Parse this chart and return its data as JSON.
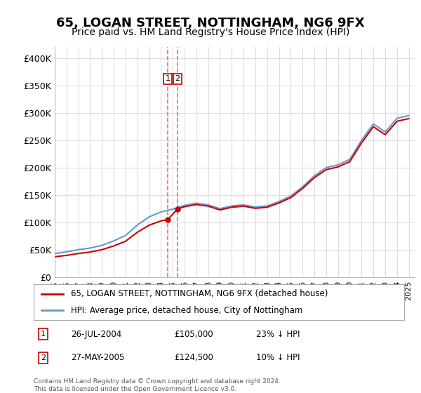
{
  "title": "65, LOGAN STREET, NOTTINGHAM, NG6 9FX",
  "subtitle": "Price paid vs. HM Land Registry's House Price Index (HPI)",
  "ylim": [
    0,
    420000
  ],
  "yticks": [
    0,
    50000,
    100000,
    150000,
    200000,
    250000,
    300000,
    350000,
    400000
  ],
  "ytick_labels": [
    "£0",
    "£50K",
    "£100K",
    "£150K",
    "£200K",
    "£250K",
    "£300K",
    "£350K",
    "£400K"
  ],
  "legend_line1": "65, LOGAN STREET, NOTTINGHAM, NG6 9FX (detached house)",
  "legend_line2": "HPI: Average price, detached house, City of Nottingham",
  "line1_color": "#cc0000",
  "line2_color": "#6699cc",
  "transaction1_date": "26-JUL-2004",
  "transaction1_price": "£105,000",
  "transaction1_hpi": "23% ↓ HPI",
  "transaction2_date": "27-MAY-2005",
  "transaction2_price": "£124,500",
  "transaction2_hpi": "10% ↓ HPI",
  "vline_color": "#ff6666",
  "grid_color": "#dddddd",
  "background_color": "#ffffff",
  "footer": "Contains HM Land Registry data © Crown copyright and database right 2024.\nThis data is licensed under the Open Government Licence v3.0.",
  "hpi_years": [
    1995,
    1996,
    1997,
    1998,
    1999,
    2000,
    2001,
    2002,
    2003,
    2004,
    2005,
    2006,
    2007,
    2008,
    2009,
    2010,
    2011,
    2012,
    2013,
    2014,
    2015,
    2016,
    2017,
    2018,
    2019,
    2020,
    2021,
    2022,
    2023,
    2024,
    2025
  ],
  "hpi_values": [
    43000,
    46000,
    50000,
    53000,
    58000,
    66000,
    76000,
    95000,
    110000,
    119000,
    124000,
    131000,
    135000,
    132000,
    125000,
    130000,
    132000,
    128000,
    130000,
    138000,
    148000,
    165000,
    185000,
    200000,
    205000,
    215000,
    250000,
    280000,
    265000,
    290000,
    295000
  ],
  "sale_years": [
    2004.57,
    2005.41
  ],
  "sale_prices": [
    105000,
    124500
  ],
  "marker_color": "#cc0000",
  "title_fontsize": 13,
  "subtitle_fontsize": 10,
  "tick_fontsize": 9
}
